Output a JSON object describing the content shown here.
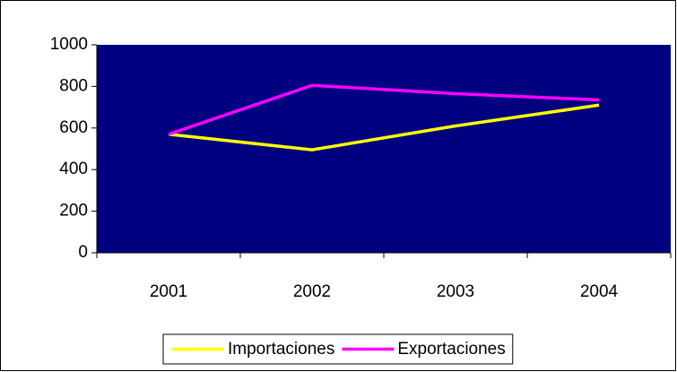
{
  "chart_data": {
    "type": "line",
    "categories": [
      "2001",
      "2002",
      "2003",
      "2004"
    ],
    "series": [
      {
        "name": "Importaciones",
        "color": "#ffff00",
        "values": [
          570,
          495,
          610,
          710
        ]
      },
      {
        "name": "Exportaciones",
        "color": "#ff00ff",
        "values": [
          570,
          805,
          765,
          735
        ]
      }
    ],
    "ylim": [
      0,
      1000
    ],
    "yticks": [
      0,
      200,
      400,
      600,
      800,
      1000
    ],
    "plot_background": "#000080",
    "legend": "bottom"
  }
}
